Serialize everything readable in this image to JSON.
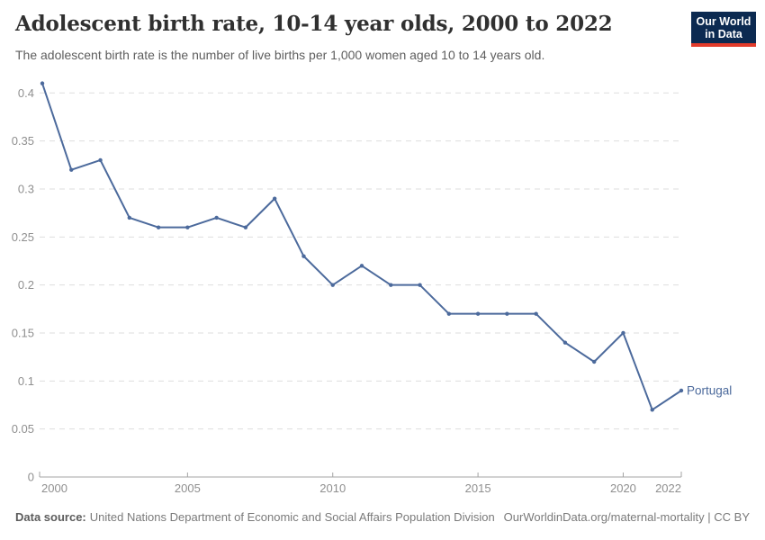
{
  "header": {
    "title": "Adolescent birth rate, 10-14 year olds, 2000 to 2022",
    "subtitle": "The adolescent birth rate is the number of live births per 1,000 women aged 10 to 14 years old."
  },
  "logo": {
    "line1": "Our World",
    "line2": "in Data",
    "bg_color": "#0c2a51",
    "bar_color": "#e23b2b"
  },
  "footer": {
    "source_label": "Data source:",
    "source_text": "United Nations Department of Economic and Social Affairs Population Division",
    "link_text": "OurWorldinData.org/maternal-mortality | CC BY"
  },
  "chart_data": {
    "type": "line",
    "title": "Adolescent birth rate, 10-14 year olds, 2000 to 2022",
    "xlabel": "",
    "ylabel": "",
    "xlim": [
      2000,
      2022
    ],
    "ylim": [
      0,
      0.41
    ],
    "x_ticks": [
      2000,
      2005,
      2010,
      2015,
      2020,
      2022
    ],
    "y_ticks": [
      0,
      0.05,
      0.1,
      0.15,
      0.2,
      0.25,
      0.3,
      0.35,
      0.4
    ],
    "grid": "horizontal-dashed",
    "legend_position": "end-of-line-label",
    "entity_label": "Portugal",
    "series": [
      {
        "name": "Portugal",
        "color": "#4c6a9c",
        "x": [
          2000,
          2001,
          2002,
          2003,
          2004,
          2005,
          2006,
          2007,
          2008,
          2009,
          2010,
          2011,
          2012,
          2013,
          2014,
          2015,
          2016,
          2017,
          2018,
          2019,
          2020,
          2021,
          2022
        ],
        "values": [
          0.41,
          0.32,
          0.33,
          0.27,
          0.26,
          0.26,
          0.27,
          0.26,
          0.29,
          0.23,
          0.2,
          0.22,
          0.2,
          0.2,
          0.17,
          0.17,
          0.17,
          0.17,
          0.14,
          0.12,
          0.15,
          0.07,
          0.09
        ]
      }
    ],
    "style": {
      "grid_color": "#dedede",
      "axis_color": "#a3a3a3",
      "tick_label_color": "#8f8f8f"
    }
  }
}
